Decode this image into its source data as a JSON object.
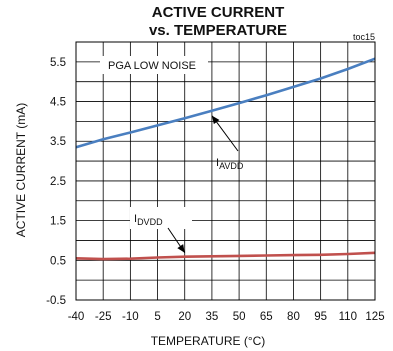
{
  "chart_data": {
    "type": "line",
    "title": "ACTIVE CURRENT",
    "subtitle": "vs. TEMPERATURE",
    "tag": "toc15",
    "annotation": "PGA LOW NOISE",
    "xlabel": "TEMPERATURE (°C)",
    "ylabel": "ACTIVE CURRENT (mA)",
    "xlim": [
      -40,
      125
    ],
    "ylim": [
      -0.5,
      6.0
    ],
    "x_ticks": [
      -40,
      -25,
      -10,
      5,
      20,
      35,
      50,
      65,
      80,
      95,
      110,
      125
    ],
    "y_ticks": [
      -0.5,
      0.5,
      1.5,
      2.5,
      3.5,
      4.5,
      5.5
    ],
    "grid": true,
    "series": [
      {
        "name": "IAVDD",
        "label_main": "I",
        "label_sub": "AVDD",
        "color": "#4a7fc0",
        "x": [
          -40,
          -25,
          -10,
          5,
          20,
          35,
          50,
          65,
          80,
          95,
          110,
          125
        ],
        "y": [
          3.35,
          3.55,
          3.72,
          3.9,
          4.08,
          4.27,
          4.46,
          4.66,
          4.87,
          5.08,
          5.32,
          5.58
        ]
      },
      {
        "name": "IDVDD",
        "label_main": "I",
        "label_sub": "DVDD",
        "color": "#c0504d",
        "x": [
          -40,
          -25,
          -10,
          5,
          20,
          35,
          50,
          65,
          80,
          95,
          110,
          125
        ],
        "y": [
          0.55,
          0.53,
          0.54,
          0.57,
          0.59,
          0.6,
          0.61,
          0.62,
          0.63,
          0.64,
          0.66,
          0.69
        ]
      }
    ]
  }
}
